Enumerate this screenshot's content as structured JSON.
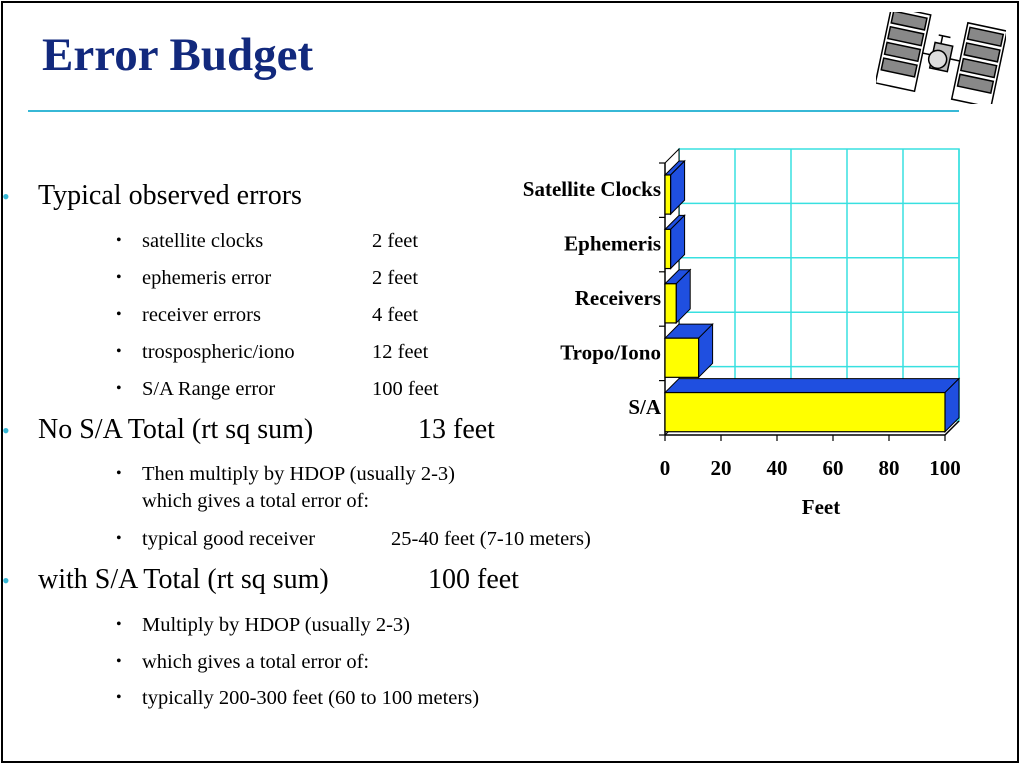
{
  "slide": {
    "title": "Error Budget",
    "accent_color": "#37b8d6",
    "title_color": "#12297d",
    "logo_icon": "gps-satellite-icon"
  },
  "bullets": {
    "b1": {
      "text": "Typical observed errors",
      "items": [
        {
          "label": "satellite clocks",
          "value": "2 feet"
        },
        {
          "label": "ephemeris error",
          "value": "2 feet"
        },
        {
          "label": "receiver errors",
          "value": "4 feet"
        },
        {
          "label": "trospospheric/iono",
          "value": "12 feet"
        },
        {
          "label": "S/A Range error",
          "value": "100 feet"
        }
      ]
    },
    "b2": {
      "label": "No S/A Total (rt sq sum)",
      "value": "13 feet",
      "sub1_line1": "Then multiply by HDOP (usually 2-3)",
      "sub1_line2": "which gives a total error of:",
      "sub2_label": "typical good receiver",
      "sub2_value": "25-40 feet (7-10 meters)"
    },
    "b3": {
      "label": "with S/A  Total (rt sq sum)",
      "value": "100 feet",
      "items": [
        "Multiply by HDOP (usually 2-3)",
        "which gives a total error of:",
        "typically 200-300 feet (60 to 100 meters)"
      ]
    }
  },
  "chart_data": {
    "type": "bar",
    "orientation": "horizontal",
    "style": "3d",
    "categories": [
      "Satellite Clocks",
      "Ephemeris",
      "Receivers",
      "Tropo/Iono",
      "S/A"
    ],
    "values": [
      2,
      2,
      4,
      12,
      100
    ],
    "xlabel": "Feet",
    "ylabel": "",
    "xlim": [
      0,
      100
    ],
    "xticks": [
      "0",
      "20",
      "40",
      "60",
      "80",
      "100"
    ],
    "grid": true,
    "bar_color": "#ffff00",
    "bar_side_color": "#1f4fe0",
    "grid_color": "#38e0e0"
  }
}
